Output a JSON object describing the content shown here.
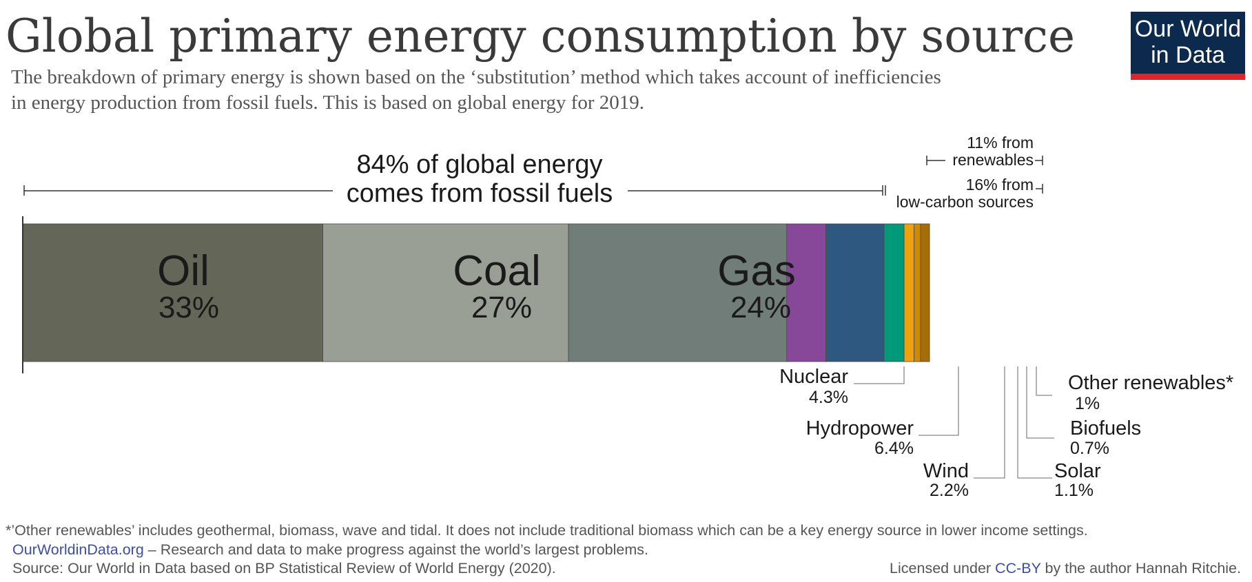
{
  "title": "Global primary energy consumption by source",
  "subtitle_lines": [
    "The breakdown of primary energy is shown based on the ‘substitution’ method which takes account of inefficiencies",
    "in energy production from fossil fuels. This is based on global energy for 2019."
  ],
  "logo": {
    "line1": "Our World",
    "line2": "in Data",
    "bg": "#0b2a4e",
    "accent": "#e0242b"
  },
  "chart_data": {
    "type": "bar",
    "orientation": "horizontal-stacked",
    "series": [
      {
        "name": "Oil",
        "value": 33,
        "label": "33%",
        "color": "#646657"
      },
      {
        "name": "Coal",
        "value": 27,
        "label": "27%",
        "color": "#999f95"
      },
      {
        "name": "Gas",
        "value": 24,
        "label": "24%",
        "color": "#717d79"
      },
      {
        "name": "Nuclear",
        "value": 4.3,
        "label": "4.3%",
        "color": "#874899"
      },
      {
        "name": "Hydropower",
        "value": 6.4,
        "label": "6.4%",
        "color": "#2e5880"
      },
      {
        "name": "Wind",
        "value": 2.2,
        "label": "2.2%",
        "color": "#00997a"
      },
      {
        "name": "Solar",
        "value": 1.1,
        "label": "1.1%",
        "color": "#f0a10e"
      },
      {
        "name": "Biofuels",
        "value": 0.7,
        "label": "0.7%",
        "color": "#cf8a00"
      },
      {
        "name": "Other renewables*",
        "value": 1,
        "label": "1%",
        "color": "#a56d05"
      }
    ],
    "brackets": {
      "fossil": {
        "line1": "84% of global energy",
        "line2": "comes from fossil fuels"
      },
      "renewables": {
        "line1": "11% from",
        "line2": "renewables"
      },
      "low_carbon": {
        "line1": "16% from",
        "line2": "low-carbon sources"
      }
    }
  },
  "footer": {
    "note": "*’Other renewables’  includes geothermal, biomass, wave and tidal. It does not include traditional biomass which can be a key energy source in lower  income settings.",
    "site": "OurWorldinData.org",
    "tagline": " – Research and data to make progress against the world’s largest problems.",
    "source": "Source: Our World in Data based on BP Statistical Review of World Energy (2020).",
    "license_prefix": "Licensed under ",
    "license_link": "CC-BY",
    "license_suffix": " by the author Hannah Ritchie."
  }
}
